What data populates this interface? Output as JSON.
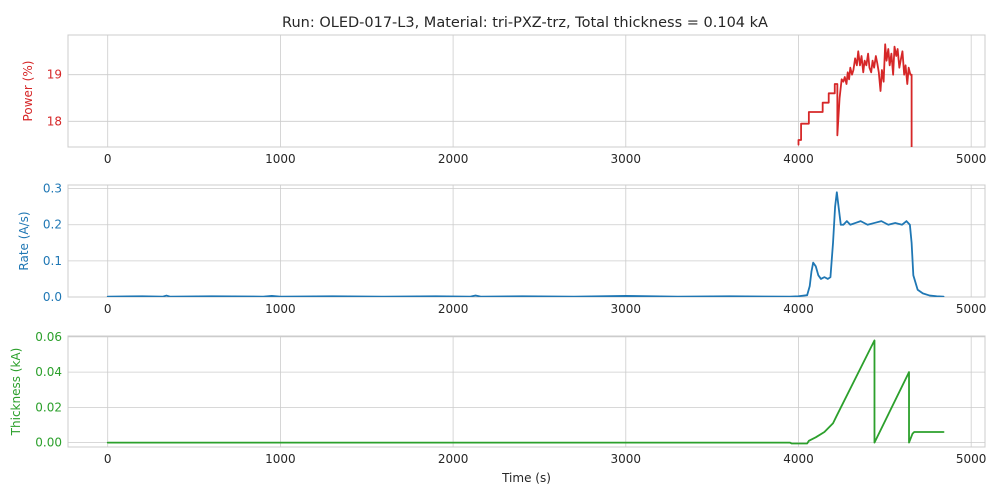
{
  "title": "Run: OLED-017-L3, Material: tri-PXZ-trz, Total thickness = 0.104 kA",
  "chart_data": [
    {
      "type": "line",
      "panel": "power",
      "ylabel": "Power (%)",
      "xlabel": "",
      "color": "#d62728",
      "grid": true,
      "xlim": [
        -230,
        5080
      ],
      "ylim": [
        17.45,
        19.85
      ],
      "xticks": [
        0,
        1000,
        2000,
        3000,
        4000,
        5000
      ],
      "xtick_labels": [
        "0",
        "1000",
        "2000",
        "3000",
        "4000",
        "5000"
      ],
      "yticks": [
        18,
        19
      ],
      "ytick_labels": [
        "18",
        "19"
      ],
      "series": [
        {
          "x": [
            4000,
            4000,
            4015,
            4015,
            4060,
            4060,
            4140,
            4140,
            4175,
            4175,
            4210,
            4210,
            4225,
            4225,
            4238,
            4250,
            4260,
            4268,
            4278,
            4285,
            4293,
            4300,
            4310,
            4318,
            4328,
            4338,
            4346,
            4356,
            4365,
            4375,
            4383,
            4393,
            4403,
            4411,
            4421,
            4429,
            4438,
            4448,
            4456,
            4465,
            4475,
            4483,
            4493,
            4502,
            4510,
            4520,
            4528,
            4538,
            4548,
            4556,
            4566,
            4574,
            4584,
            4594,
            4602,
            4612,
            4620,
            4630,
            4638,
            4648,
            4655,
            4655
          ],
          "y": [
            17.5,
            17.6,
            17.6,
            17.95,
            17.95,
            18.2,
            18.2,
            18.4,
            18.4,
            18.6,
            18.6,
            18.8,
            18.8,
            17.7,
            18.5,
            18.9,
            18.85,
            18.95,
            18.8,
            19.05,
            18.9,
            19.15,
            19.0,
            19.1,
            19.35,
            19.2,
            19.5,
            19.2,
            19.4,
            19.05,
            19.3,
            19.2,
            19.45,
            19.15,
            19.05,
            19.3,
            19.15,
            19.4,
            19.25,
            19.05,
            18.65,
            19.1,
            18.85,
            19.65,
            19.3,
            19.55,
            19.2,
            19.45,
            19.0,
            19.6,
            19.4,
            19.55,
            19.15,
            19.35,
            19.5,
            19.0,
            19.2,
            18.8,
            19.15,
            19.0,
            19.0,
            17.45
          ]
        }
      ]
    },
    {
      "type": "line",
      "panel": "rate",
      "ylabel": "Rate (A/s)",
      "xlabel": "",
      "color": "#1f77b4",
      "grid": true,
      "xlim": [
        -230,
        5080
      ],
      "ylim": [
        0,
        0.31
      ],
      "xticks": [
        0,
        1000,
        2000,
        3000,
        4000,
        5000
      ],
      "xtick_labels": [
        "0",
        "1000",
        "2000",
        "3000",
        "4000",
        "5000"
      ],
      "yticks": [
        0.0,
        0.1,
        0.2,
        0.3
      ],
      "ytick_labels": [
        "0.0",
        "0.1",
        "0.2",
        "0.3"
      ],
      "series": [
        {
          "x": [
            0,
            200,
            320,
            340,
            360,
            600,
            900,
            950,
            1000,
            1300,
            1600,
            1900,
            2100,
            2130,
            2160,
            2400,
            2700,
            3000,
            3300,
            3600,
            3950,
            4000,
            4050,
            4065,
            4075,
            4085,
            4100,
            4115,
            4130,
            4150,
            4170,
            4185,
            4200,
            4212,
            4222,
            4232,
            4245,
            4260,
            4280,
            4300,
            4330,
            4360,
            4400,
            4440,
            4480,
            4520,
            4560,
            4600,
            4625,
            4645,
            4655,
            4665,
            4690,
            4720,
            4760,
            4800,
            4840
          ],
          "y": [
            0.001,
            0.002,
            0.001,
            0.004,
            0.001,
            0.002,
            0.001,
            0.003,
            0.001,
            0.002,
            0.001,
            0.002,
            0.001,
            0.004,
            0.001,
            0.002,
            0.001,
            0.003,
            0.001,
            0.002,
            0.001,
            0.002,
            0.005,
            0.03,
            0.07,
            0.095,
            0.085,
            0.06,
            0.05,
            0.055,
            0.05,
            0.055,
            0.15,
            0.25,
            0.29,
            0.25,
            0.2,
            0.2,
            0.21,
            0.2,
            0.205,
            0.21,
            0.2,
            0.205,
            0.21,
            0.2,
            0.205,
            0.2,
            0.21,
            0.2,
            0.15,
            0.06,
            0.02,
            0.01,
            0.004,
            0.002,
            0.001
          ]
        }
      ]
    },
    {
      "type": "line",
      "panel": "thickness",
      "ylabel": "Thickness (kA)",
      "xlabel": "Time (s)",
      "color": "#2ca02c",
      "grid": true,
      "xlim": [
        -230,
        5080
      ],
      "ylim": [
        -0.0025,
        0.0605
      ],
      "xticks": [
        0,
        1000,
        2000,
        3000,
        4000,
        5000
      ],
      "xtick_labels": [
        "0",
        "1000",
        "2000",
        "3000",
        "4000",
        "5000"
      ],
      "yticks": [
        0.0,
        0.02,
        0.04,
        0.06
      ],
      "ytick_labels": [
        "0.00",
        "0.02",
        "0.04",
        "0.06"
      ],
      "series": [
        {
          "x": [
            0,
            3950,
            3960,
            4050,
            4060,
            4100,
            4150,
            4200,
            4220,
            4440,
            4440,
            4640,
            4640,
            4660,
            4670,
            4840
          ],
          "y": [
            0.0,
            0.0,
            -0.0005,
            -0.0005,
            0.001,
            0.003,
            0.006,
            0.011,
            0.015,
            0.058,
            0.0,
            0.04,
            0.0,
            0.005,
            0.006,
            0.006
          ]
        }
      ]
    }
  ]
}
